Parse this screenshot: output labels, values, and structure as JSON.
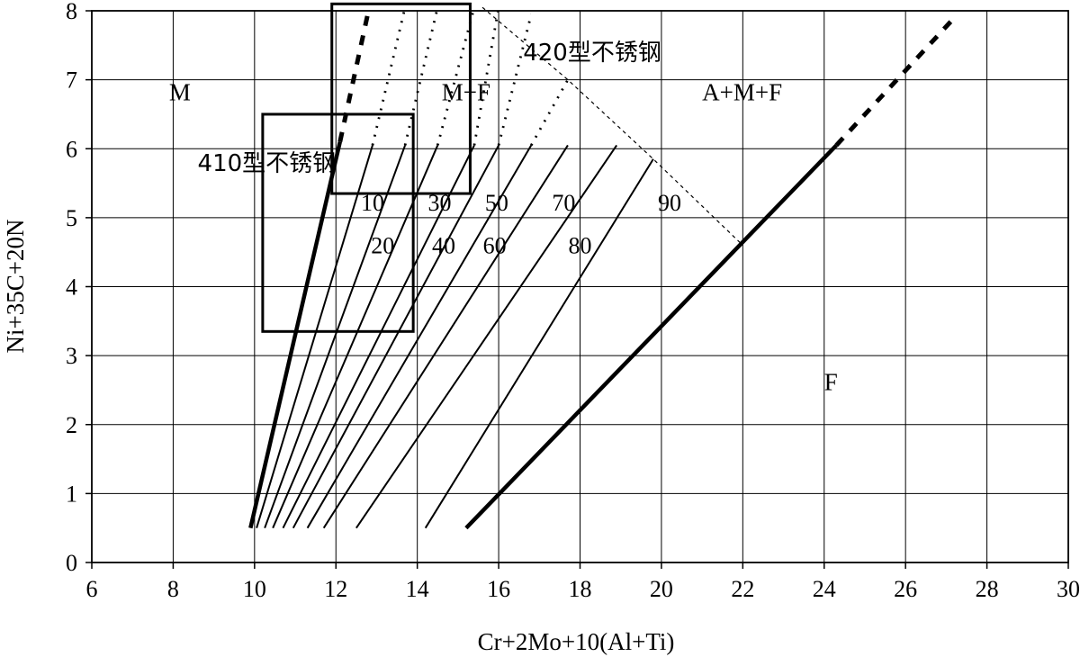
{
  "chart_data": {
    "type": "line",
    "xlabel": "Cr+2Mo+10(Al+Ti)",
    "ylabel": "Ni+35C+20N",
    "xlim": [
      6,
      30
    ],
    "ylim": [
      0,
      8
    ],
    "xticks": [
      "6",
      "8",
      "10",
      "12",
      "14",
      "16",
      "18",
      "20",
      "22",
      "24",
      "26",
      "28",
      "30"
    ],
    "yticks": [
      "0",
      "1",
      "2",
      "3",
      "4",
      "5",
      "6",
      "7",
      "8"
    ],
    "grid": true,
    "regions": [
      {
        "label": "M",
        "x": 7.9,
        "y": 6.7
      },
      {
        "label": "M+F",
        "x": 14.6,
        "y": 6.7
      },
      {
        "label": "A+M+F",
        "x": 21.0,
        "y": 6.7
      },
      {
        "label": "F",
        "x": 24.0,
        "y": 2.5
      }
    ],
    "steel_boxes": [
      {
        "label": "410型不锈钢",
        "x_range": [
          10.2,
          13.9
        ],
        "y_range": [
          3.35,
          6.5
        ],
        "label_at": [
          8.6,
          5.68
        ]
      },
      {
        "label": "420型不锈钢",
        "x_range": [
          11.9,
          15.3
        ],
        "y_range": [
          5.35,
          8.1
        ],
        "label_at": [
          16.6,
          7.28
        ]
      }
    ],
    "boundaries": [
      {
        "name": "M/M+F",
        "solid": [
          [
            9.9,
            0.5
          ],
          [
            12.1,
            6.1
          ]
        ],
        "dashed": [
          [
            12.1,
            6.1
          ],
          [
            12.8,
            8.0
          ]
        ]
      },
      {
        "name": "F",
        "solid": [
          [
            15.2,
            0.5
          ],
          [
            24.3,
            6.05
          ]
        ],
        "dashed": [
          [
            24.3,
            6.05
          ],
          [
            27.2,
            7.9
          ]
        ]
      }
    ],
    "ferrite_lines": [
      {
        "x": [
          10.05,
          12.9
        ],
        "y": [
          0.5,
          6.05
        ],
        "dashed_to": [
          13.7,
          8.05
        ]
      },
      {
        "x": [
          10.25,
          13.7
        ],
        "y": [
          0.5,
          6.05
        ],
        "dashed_to": [
          14.5,
          8.05
        ]
      },
      {
        "x": [
          10.45,
          14.5
        ],
        "y": [
          0.5,
          6.05
        ],
        "dashed_to": [
          15.4,
          8.05
        ]
      },
      {
        "x": [
          10.7,
          15.4
        ],
        "y": [
          0.5,
          6.05
        ],
        "dashed_to": [
          16.0,
          8.05
        ]
      },
      {
        "x": [
          10.95,
          16.0
        ],
        "y": [
          0.5,
          6.05
        ],
        "dashed_to": [
          16.8,
          7.95
        ]
      },
      {
        "x": [
          11.3,
          16.8
        ],
        "y": [
          0.5,
          6.05
        ],
        "dashed_to": [
          17.7,
          7.0
        ]
      },
      {
        "x": [
          11.7,
          17.7
        ],
        "y": [
          0.5,
          6.05
        ]
      },
      {
        "x": [
          12.5,
          18.9
        ],
        "y": [
          0.5,
          6.05
        ]
      },
      {
        "x": [
          14.2,
          19.8
        ],
        "y": [
          0.5,
          5.85
        ]
      }
    ],
    "ferrite_labels": [
      {
        "text": "10",
        "x": 12.9,
        "y": 5.1
      },
      {
        "text": "30",
        "x": 14.55,
        "y": 5.1
      },
      {
        "text": "50",
        "x": 15.95,
        "y": 5.1
      },
      {
        "text": "70",
        "x": 17.6,
        "y": 5.1
      },
      {
        "text": "90",
        "x": 20.2,
        "y": 5.1
      },
      {
        "text": "20",
        "x": 13.15,
        "y": 4.48
      },
      {
        "text": "40",
        "x": 14.65,
        "y": 4.48
      },
      {
        "text": "60",
        "x": 15.9,
        "y": 4.48
      },
      {
        "text": "80",
        "x": 18.0,
        "y": 4.48
      }
    ],
    "upper_envelope": [
      [
        15.6,
        8.05
      ],
      [
        17.7,
        7.0
      ],
      [
        19.8,
        5.85
      ],
      [
        22.0,
        4.6
      ]
    ]
  }
}
